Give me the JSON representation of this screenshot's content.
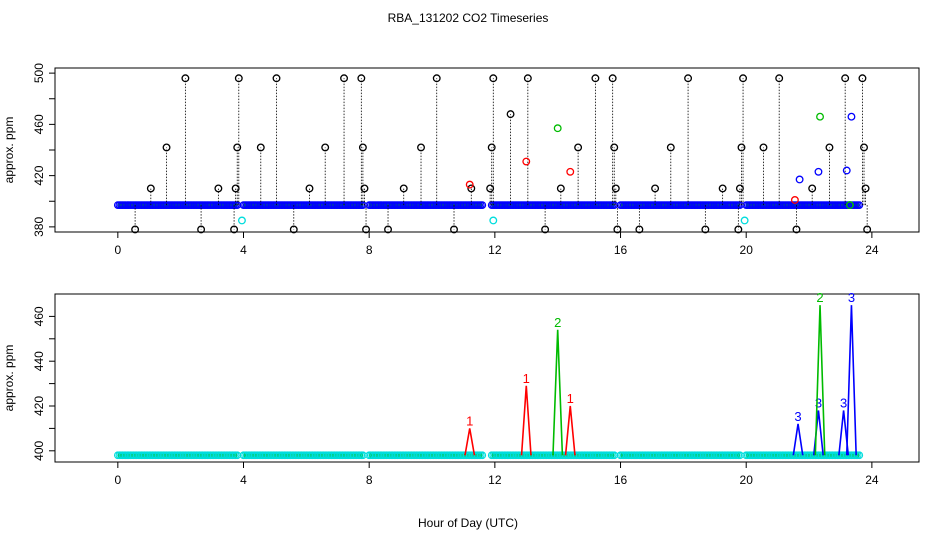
{
  "chart_data": {
    "title": "RBA_131202  CO2 Timeseries",
    "xlabel": "Hour of Day (UTC)",
    "colors": {
      "black": "#000000",
      "red": "#ff0000",
      "green": "#00bb00",
      "blue": "#0000ff",
      "cyan": "#00dddd"
    },
    "panels": [
      {
        "type": "scatter",
        "ylabel": "approx. ppm",
        "xlim": [
          -2,
          25.5
        ],
        "ylim": [
          376,
          504
        ],
        "xticks": [
          0,
          4,
          8,
          12,
          16,
          20,
          24
        ],
        "yticks": [
          380,
          420,
          460,
          500
        ],
        "baseline": 397,
        "segments": [
          [
            0,
            3.8
          ],
          [
            4,
            7.8
          ],
          [
            8,
            11.6
          ],
          [
            11.9,
            15.8
          ],
          [
            16,
            19.8
          ],
          [
            20,
            23.6
          ]
        ],
        "black_markers": [
          {
            "x": 0.55,
            "y": 378
          },
          {
            "x": 1.05,
            "y": 410
          },
          {
            "x": 1.55,
            "y": 442
          },
          {
            "x": 2.15,
            "y": 496
          },
          {
            "x": 2.65,
            "y": 378
          },
          {
            "x": 3.2,
            "y": 410
          },
          {
            "x": 3.7,
            "y": 378
          },
          {
            "x": 3.75,
            "y": 410
          },
          {
            "x": 3.8,
            "y": 442
          },
          {
            "x": 3.85,
            "y": 496
          },
          {
            "x": 4.55,
            "y": 442
          },
          {
            "x": 5.05,
            "y": 496
          },
          {
            "x": 5.6,
            "y": 378
          },
          {
            "x": 6.1,
            "y": 410
          },
          {
            "x": 6.6,
            "y": 442
          },
          {
            "x": 7.2,
            "y": 496
          },
          {
            "x": 7.75,
            "y": 496
          },
          {
            "x": 7.8,
            "y": 442
          },
          {
            "x": 7.85,
            "y": 410
          },
          {
            "x": 7.9,
            "y": 378
          },
          {
            "x": 8.6,
            "y": 378
          },
          {
            "x": 9.1,
            "y": 410
          },
          {
            "x": 9.65,
            "y": 442
          },
          {
            "x": 10.15,
            "y": 496
          },
          {
            "x": 10.7,
            "y": 378
          },
          {
            "x": 11.25,
            "y": 410
          },
          {
            "x": 11.85,
            "y": 410
          },
          {
            "x": 11.9,
            "y": 442
          },
          {
            "x": 11.95,
            "y": 496
          },
          {
            "x": 12.5,
            "y": 468
          },
          {
            "x": 13.05,
            "y": 496
          },
          {
            "x": 13.6,
            "y": 378
          },
          {
            "x": 14.1,
            "y": 410
          },
          {
            "x": 14.65,
            "y": 442
          },
          {
            "x": 15.2,
            "y": 496
          },
          {
            "x": 15.75,
            "y": 496
          },
          {
            "x": 15.8,
            "y": 442
          },
          {
            "x": 15.85,
            "y": 410
          },
          {
            "x": 15.9,
            "y": 378
          },
          {
            "x": 16.6,
            "y": 378
          },
          {
            "x": 17.1,
            "y": 410
          },
          {
            "x": 17.6,
            "y": 442
          },
          {
            "x": 18.15,
            "y": 496
          },
          {
            "x": 18.7,
            "y": 378
          },
          {
            "x": 19.25,
            "y": 410
          },
          {
            "x": 19.75,
            "y": 378
          },
          {
            "x": 19.8,
            "y": 410
          },
          {
            "x": 19.85,
            "y": 442
          },
          {
            "x": 19.9,
            "y": 496
          },
          {
            "x": 20.55,
            "y": 442
          },
          {
            "x": 21.05,
            "y": 496
          },
          {
            "x": 21.6,
            "y": 378
          },
          {
            "x": 22.1,
            "y": 410
          },
          {
            "x": 22.65,
            "y": 442
          },
          {
            "x": 23.15,
            "y": 496
          },
          {
            "x": 23.7,
            "y": 496
          },
          {
            "x": 23.75,
            "y": 442
          },
          {
            "x": 23.8,
            "y": 410
          },
          {
            "x": 23.85,
            "y": 378
          }
        ],
        "colored_markers": [
          {
            "x": 11.2,
            "y": 413,
            "color": "red"
          },
          {
            "x": 13.0,
            "y": 431,
            "color": "red"
          },
          {
            "x": 14.4,
            "y": 423,
            "color": "red"
          },
          {
            "x": 21.55,
            "y": 401,
            "color": "red"
          },
          {
            "x": 14.0,
            "y": 457,
            "color": "green"
          },
          {
            "x": 22.35,
            "y": 466,
            "color": "green"
          },
          {
            "x": 23.3,
            "y": 397,
            "color": "green"
          },
          {
            "x": 21.7,
            "y": 417,
            "color": "blue"
          },
          {
            "x": 22.3,
            "y": 423,
            "color": "blue"
          },
          {
            "x": 23.2,
            "y": 424,
            "color": "blue"
          },
          {
            "x": 23.35,
            "y": 466,
            "color": "blue"
          },
          {
            "x": 3.95,
            "y": 385,
            "color": "cyan"
          },
          {
            "x": 11.95,
            "y": 385,
            "color": "cyan"
          },
          {
            "x": 19.95,
            "y": 385,
            "color": "cyan"
          }
        ]
      },
      {
        "type": "line",
        "ylabel": "approx. ppm",
        "xlim": [
          -2,
          25.5
        ],
        "ylim": [
          395,
          470
        ],
        "xticks": [
          0,
          4,
          8,
          12,
          16,
          20,
          24
        ],
        "yticks": [
          400,
          420,
          440,
          460
        ],
        "baseline": 398,
        "segments": [
          [
            0,
            3.8
          ],
          [
            4,
            7.8
          ],
          [
            8,
            11.6
          ],
          [
            11.9,
            15.8
          ],
          [
            16,
            19.8
          ],
          [
            20,
            23.6
          ]
        ],
        "peaks": [
          {
            "label": "1",
            "color": "red",
            "x": 11.2,
            "y": 410
          },
          {
            "label": "1",
            "color": "red",
            "x": 13.0,
            "y": 429
          },
          {
            "label": "2",
            "color": "green",
            "x": 14.0,
            "y": 454
          },
          {
            "label": "1",
            "color": "red",
            "x": 14.4,
            "y": 420
          },
          {
            "label": "3",
            "color": "blue",
            "x": 21.65,
            "y": 412
          },
          {
            "label": "3",
            "color": "blue",
            "x": 22.3,
            "y": 418
          },
          {
            "label": "2",
            "color": "green",
            "x": 22.35,
            "y": 465
          },
          {
            "label": "3",
            "color": "blue",
            "x": 23.1,
            "y": 418
          },
          {
            "label": "3",
            "color": "blue",
            "x": 23.35,
            "y": 465
          }
        ]
      }
    ]
  }
}
